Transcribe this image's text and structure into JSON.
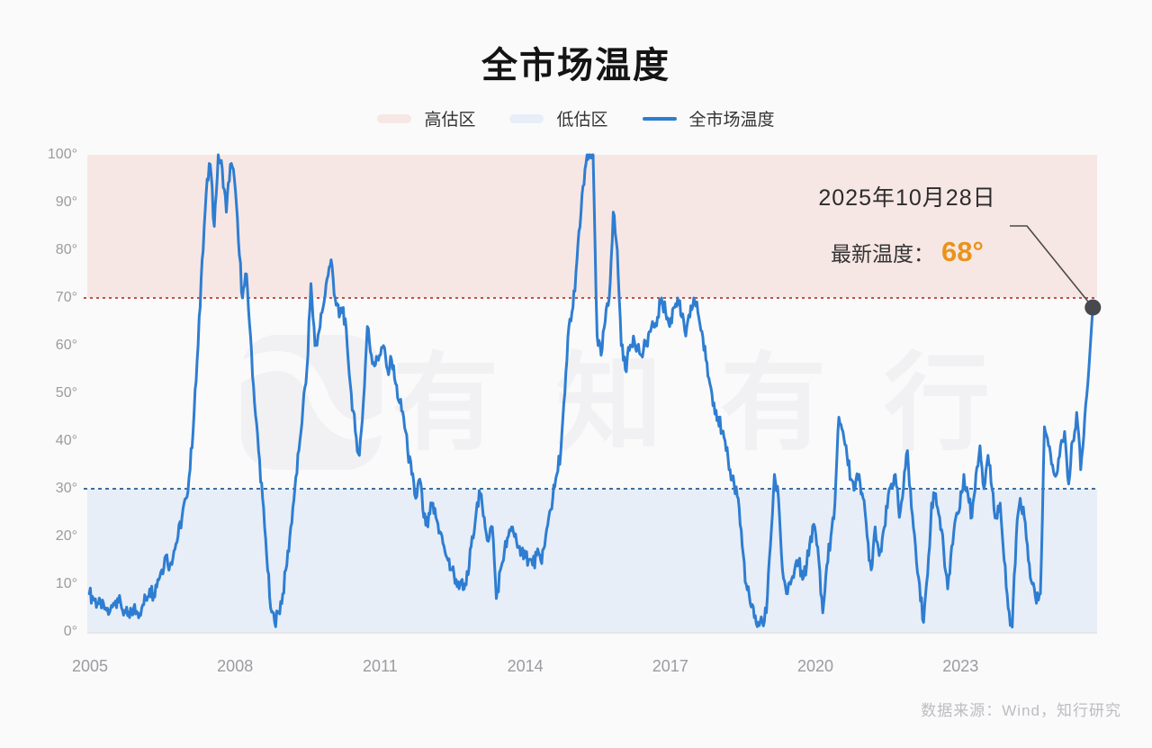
{
  "title": "全市场温度",
  "legend": {
    "overvalued": "高估区",
    "undervalued": "低估区",
    "temperature": "全市场温度"
  },
  "annotation": {
    "date": "2025年10月28日",
    "label": "最新温度：",
    "value": "68°"
  },
  "watermark": "有知有行",
  "source": "数据来源：Wind，知行研究",
  "colors": {
    "line": "#2e7dd1",
    "overvalued_band": "#f7e7e4",
    "undervalued_band": "#e7eef7",
    "overvalued_edge": "#c2504b",
    "undervalued_edge": "#3d6d9e",
    "accent_orange": "#e8931c",
    "dot": "#47494e"
  },
  "chart_data": {
    "type": "line",
    "title": "全市场温度",
    "legend_position": "top",
    "grid": false,
    "ylim": [
      0,
      100
    ],
    "xlim": [
      2005,
      2025.88
    ],
    "y_tick_values": [
      100,
      90,
      80,
      70,
      60,
      50,
      40,
      30,
      20,
      10,
      0
    ],
    "y_tick_labels": [
      "100°",
      "90°",
      "80°",
      "70°",
      "60°",
      "50°",
      "40°",
      "30°",
      "20°",
      "10°",
      "0°"
    ],
    "x_tick_values": [
      2005,
      2008,
      2011,
      2014,
      2017,
      2020,
      2023
    ],
    "x_tick_labels": [
      "2005",
      "2008",
      "2011",
      "2014",
      "2017",
      "2020",
      "2023"
    ],
    "zones": {
      "high": {
        "label": "高估区",
        "min": 70,
        "max": 100
      },
      "low": {
        "label": "低估区",
        "min": 0,
        "max": 30
      }
    },
    "series": [
      {
        "name": "全市场温度",
        "start_year": 2005,
        "interval": "monthly",
        "values": [
          8,
          7,
          6,
          5,
          5,
          4,
          6,
          7,
          5,
          4,
          3,
          5,
          4,
          5,
          7,
          9,
          8,
          11,
          13,
          16,
          14,
          17,
          20,
          24,
          28,
          34,
          46,
          60,
          78,
          92,
          98,
          85,
          100,
          97,
          88,
          98,
          95,
          82,
          70,
          75,
          62,
          48,
          38,
          28,
          16,
          5,
          2,
          4,
          8,
          14,
          22,
          30,
          38,
          47,
          55,
          73,
          60,
          63,
          68,
          74,
          78,
          70,
          66,
          68,
          60,
          50,
          42,
          37,
          48,
          64,
          58,
          56,
          58,
          60,
          55,
          57,
          52,
          48,
          45,
          38,
          33,
          28,
          32,
          24,
          22,
          27,
          24,
          21,
          18,
          15,
          13,
          11,
          10,
          9,
          12,
          20,
          25,
          29,
          24,
          19,
          22,
          7,
          13,
          17,
          20,
          22,
          19,
          16,
          17,
          15,
          14,
          16,
          15,
          18,
          24,
          28,
          33,
          38,
          50,
          64,
          68,
          78,
          88,
          97,
          100,
          100,
          62,
          58,
          65,
          70,
          88,
          80,
          60,
          55,
          59,
          62,
          60,
          58,
          60,
          63,
          64,
          66,
          70,
          67,
          64,
          68,
          70,
          66,
          62,
          66,
          70,
          67,
          63,
          57,
          52,
          48,
          45,
          42,
          38,
          34,
          31,
          28,
          18,
          10,
          6,
          3,
          2,
          2,
          4,
          18,
          33,
          28,
          13,
          8,
          10,
          13,
          15,
          11,
          14,
          20,
          22,
          15,
          4,
          14,
          20,
          27,
          45,
          42,
          37,
          32,
          30,
          33,
          28,
          20,
          13,
          22,
          16,
          21,
          26,
          31,
          33,
          24,
          30,
          38,
          26,
          18,
          10,
          2,
          12,
          27,
          29,
          24,
          17,
          9,
          18,
          24,
          26,
          33,
          29,
          24,
          33,
          39,
          30,
          37,
          30,
          24,
          27,
          15,
          5,
          1,
          20,
          28,
          24,
          15,
          10,
          6,
          8,
          43,
          39,
          35,
          33,
          39,
          42,
          31,
          40,
          46,
          34,
          45,
          55,
          68
        ]
      }
    ],
    "latest": {
      "date": "2025年10月28日",
      "value": 68,
      "display": "68°"
    }
  }
}
